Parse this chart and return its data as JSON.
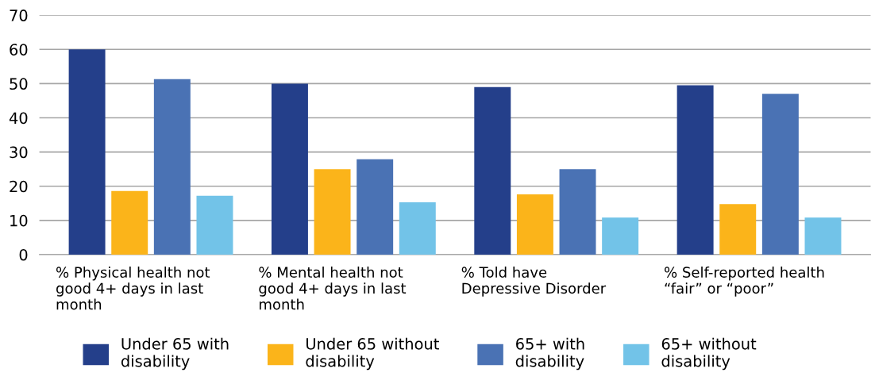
{
  "chart_data": {
    "type": "bar",
    "categories": [
      "% Physical health not good 4+ days in last month",
      "% Mental health not good 4+ days in last month",
      "% Told have Depressive Disorder",
      "% Self-reported health “fair” or “poor”"
    ],
    "series": [
      {
        "name": "Under 65 with disability",
        "color": "#243f8a",
        "values": [
          60,
          50,
          49,
          49.5
        ]
      },
      {
        "name": "Under 65 without disability",
        "color": "#fbb41a",
        "values": [
          18.6,
          25,
          17.6,
          14.8
        ]
      },
      {
        "name": "65+ with disability",
        "color": "#4a72b4",
        "values": [
          51.3,
          27.9,
          25,
          47
        ]
      },
      {
        "name": "65+ without disability",
        "color": "#72c3e8",
        "values": [
          17.2,
          15.3,
          10.8,
          10.8
        ]
      }
    ],
    "ylim": [
      0,
      70
    ],
    "yticks": [
      0,
      10,
      20,
      30,
      40,
      50,
      60,
      70
    ],
    "grid": "y",
    "legend": "bottom"
  }
}
